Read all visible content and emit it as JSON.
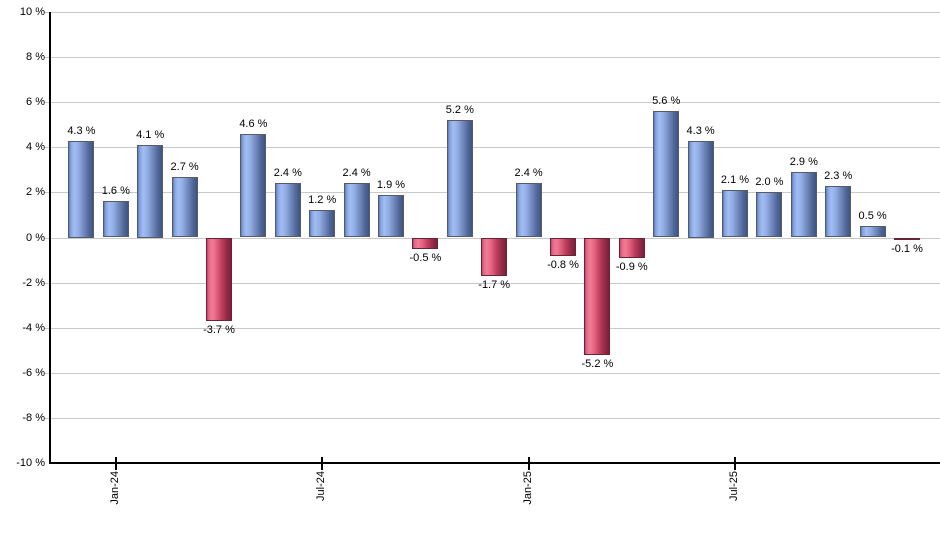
{
  "chart_data": {
    "type": "bar",
    "title": "",
    "xlabel": "",
    "ylabel": "",
    "ylim": [
      -10,
      10
    ],
    "y_tick_step": 2,
    "grid": true,
    "legend": null,
    "background": "#ffffff",
    "values": [
      4.3,
      1.6,
      4.1,
      2.7,
      -3.7,
      4.6,
      2.4,
      1.2,
      2.4,
      1.9,
      -0.5,
      5.2,
      -1.7,
      2.4,
      -0.8,
      -5.2,
      -0.9,
      5.6,
      4.3,
      2.1,
      2.0,
      2.9,
      2.3,
      0.5,
      -0.1
    ],
    "bar_labels": [
      "4.3 %",
      "1.6 %",
      "4.1 %",
      "2.7 %",
      "-3.7 %",
      "4.6 %",
      "2.4 %",
      "1.2 %",
      "2.4 %",
      "1.9 %",
      "-0.5 %",
      "5.2 %",
      "-1.7 %",
      "2.4 %",
      "-0.8 %",
      "-5.2 %",
      "-0.9 %",
      "5.6 %",
      "4.3 %",
      "2.1 %",
      "2.0 %",
      "2.9 %",
      "2.3 %",
      "0.5 %",
      "-0.1 %"
    ],
    "y_ticks": [
      "10 %",
      "8 %",
      "6 %",
      "4 %",
      "2 %",
      "0 %",
      "-2 %",
      "-4 %",
      "-6 %",
      "-8 %",
      "-10 %"
    ],
    "x_ticks": [
      {
        "label": "Jan-24",
        "bar_index": 1
      },
      {
        "label": "Jul-24",
        "bar_index": 7
      },
      {
        "label": "Jan-25",
        "bar_index": 13
      },
      {
        "label": "Jul-25",
        "bar_index": 19
      }
    ],
    "x_tick_rotation": -90,
    "colors": {
      "positive_bar_gradient": [
        "#5c7ab5",
        "#86a5e3",
        "#a2bdf2",
        "#92ade5",
        "#7089bd",
        "#53699b",
        "#3e5480"
      ],
      "negative_bar_gradient": [
        "#c14465",
        "#e56a87",
        "#f07b96",
        "#e4617f",
        "#bb3d5d",
        "#962b49",
        "#7b2039"
      ],
      "bar_border": "#565b66",
      "gridline": "#c9c9c9",
      "axis": "#000000",
      "text": "#000000"
    }
  }
}
